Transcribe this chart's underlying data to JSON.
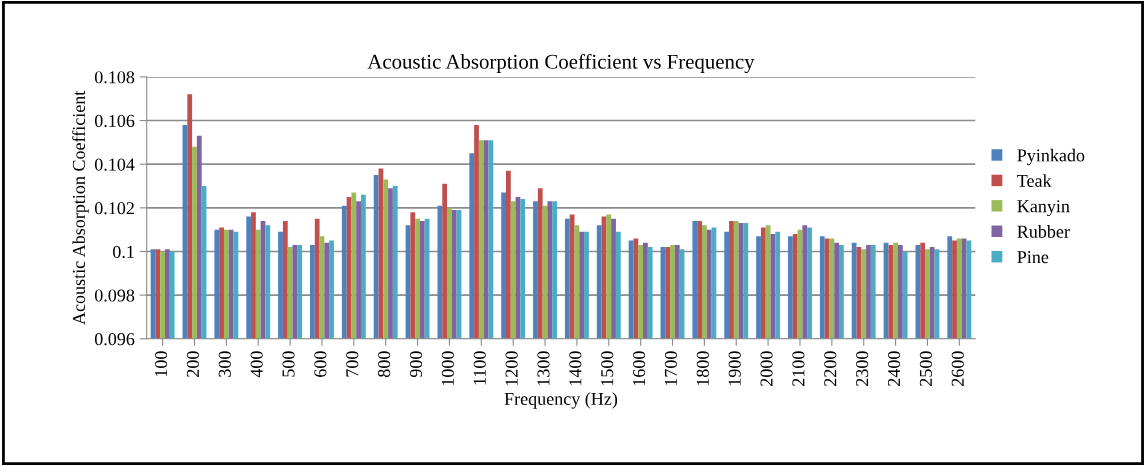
{
  "chart_data": {
    "type": "bar",
    "title": "Acoustic Absorption Coefficient vs Frequency",
    "xlabel": "Frequency (Hz)",
    "ylabel": "Acoustic Absorption Coefficient",
    "categories": [
      "100",
      "200",
      "300",
      "400",
      "500",
      "600",
      "700",
      "800",
      "900",
      "1000",
      "1100",
      "1200",
      "1300",
      "1400",
      "1500",
      "1600",
      "1700",
      "1800",
      "1900",
      "2000",
      "2100",
      "2200",
      "2300",
      "2400",
      "2500",
      "2600"
    ],
    "series": [
      {
        "name": "Pyinkado",
        "color": "#4f81bd",
        "values": [
          0.1001,
          0.1058,
          0.101,
          0.1016,
          0.1009,
          0.1003,
          0.1021,
          0.1035,
          0.1012,
          0.1021,
          0.1045,
          0.1027,
          0.1023,
          0.1015,
          0.1012,
          0.1005,
          0.1002,
          0.1014,
          0.1009,
          0.1007,
          0.1007,
          0.1007,
          0.1004,
          0.1004,
          0.1003,
          0.1007
        ]
      },
      {
        "name": "Teak",
        "color": "#c0504d",
        "values": [
          0.1001,
          0.1072,
          0.1011,
          0.1018,
          0.1014,
          0.1015,
          0.1025,
          0.1038,
          0.1018,
          0.1031,
          0.1058,
          0.1037,
          0.1029,
          0.1017,
          0.1016,
          0.1006,
          0.1002,
          0.1014,
          0.1014,
          0.1011,
          0.1008,
          0.1006,
          0.1002,
          0.1003,
          0.1004,
          0.1005
        ]
      },
      {
        "name": "Kanyin",
        "color": "#9bbb59",
        "values": [
          0.1,
          0.1048,
          0.101,
          0.101,
          0.1002,
          0.1007,
          0.1027,
          0.1033,
          0.1015,
          0.102,
          0.1051,
          0.1023,
          0.1021,
          0.1012,
          0.1017,
          0.1003,
          0.1003,
          0.1012,
          0.1014,
          0.1012,
          0.101,
          0.1006,
          0.1001,
          0.1004,
          0.1001,
          0.1006
        ]
      },
      {
        "name": "Rubber",
        "color": "#8064a2",
        "values": [
          0.1001,
          0.1053,
          0.101,
          0.1014,
          0.1003,
          0.1004,
          0.1023,
          0.1029,
          0.1014,
          0.1019,
          0.1051,
          0.1025,
          0.1023,
          0.1009,
          0.1015,
          0.1004,
          0.1003,
          0.101,
          0.1013,
          0.1008,
          0.1012,
          0.1004,
          0.1003,
          0.1003,
          0.1002,
          0.1006
        ]
      },
      {
        "name": "Pine",
        "color": "#4bacc6",
        "values": [
          0.1,
          0.103,
          0.1009,
          0.1012,
          0.1003,
          0.1005,
          0.1026,
          0.103,
          0.1015,
          0.1019,
          0.1051,
          0.1024,
          0.1023,
          0.1009,
          0.1009,
          0.1002,
          0.1001,
          0.1011,
          0.1013,
          0.1009,
          0.1011,
          0.1003,
          0.1003,
          0.1,
          0.1001,
          0.1005
        ]
      }
    ],
    "ylim": [
      0.096,
      0.108
    ],
    "yticks": [
      0.096,
      0.098,
      0.1,
      0.102,
      0.104,
      0.106,
      0.108
    ],
    "grid": "y",
    "legend": "right"
  }
}
